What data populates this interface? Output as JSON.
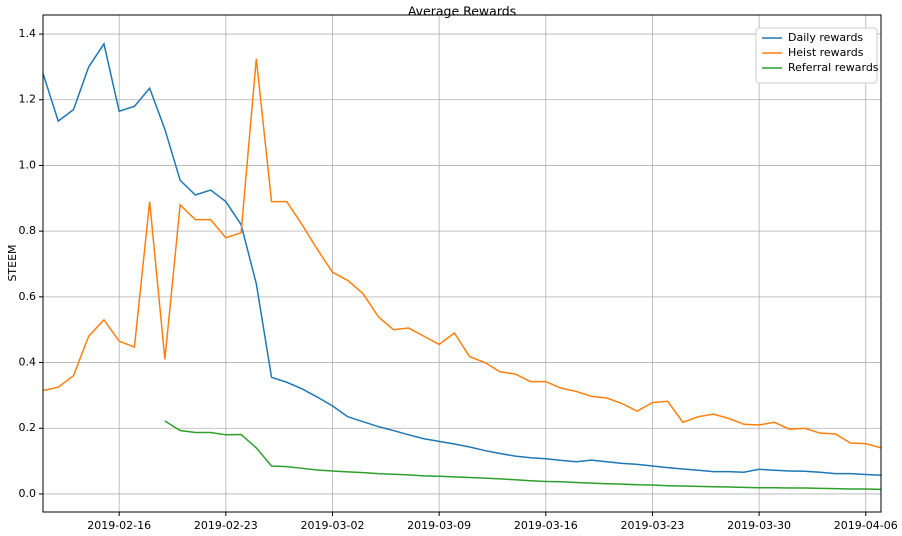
{
  "chart_data": {
    "type": "line",
    "title": "Average Rewards",
    "ylabel": "STEEM",
    "x": [
      "2019-02-11",
      "2019-02-12",
      "2019-02-13",
      "2019-02-14",
      "2019-02-15",
      "2019-02-16",
      "2019-02-17",
      "2019-02-18",
      "2019-02-19",
      "2019-02-20",
      "2019-02-21",
      "2019-02-22",
      "2019-02-23",
      "2019-02-24",
      "2019-02-25",
      "2019-02-26",
      "2019-02-27",
      "2019-02-28",
      "2019-03-01",
      "2019-03-02",
      "2019-03-03",
      "2019-03-04",
      "2019-03-05",
      "2019-03-06",
      "2019-03-07",
      "2019-03-08",
      "2019-03-09",
      "2019-03-10",
      "2019-03-11",
      "2019-03-12",
      "2019-03-13",
      "2019-03-14",
      "2019-03-15",
      "2019-03-16",
      "2019-03-17",
      "2019-03-18",
      "2019-03-19",
      "2019-03-20",
      "2019-03-21",
      "2019-03-22",
      "2019-03-23",
      "2019-03-24",
      "2019-03-25",
      "2019-03-26",
      "2019-03-27",
      "2019-03-28",
      "2019-03-29",
      "2019-03-30",
      "2019-03-31",
      "2019-04-01",
      "2019-04-02",
      "2019-04-03",
      "2019-04-04",
      "2019-04-05",
      "2019-04-06",
      "2019-04-07"
    ],
    "series": [
      {
        "name": "Daily rewards",
        "color": "#1f77b4",
        "values": [
          1.28,
          1.135,
          1.17,
          1.3,
          1.37,
          1.165,
          1.18,
          1.235,
          1.11,
          0.955,
          0.91,
          0.925,
          0.89,
          0.82,
          0.64,
          0.355,
          0.34,
          0.32,
          0.295,
          0.268,
          0.235,
          0.22,
          0.205,
          0.193,
          0.18,
          0.168,
          0.16,
          0.152,
          0.143,
          0.132,
          0.123,
          0.115,
          0.11,
          0.107,
          0.102,
          0.098,
          0.103,
          0.098,
          0.093,
          0.09,
          0.085,
          0.08,
          0.076,
          0.072,
          0.068,
          0.068,
          0.066,
          0.075,
          0.072,
          0.07,
          0.069,
          0.066,
          0.062,
          0.062,
          0.059,
          0.057
        ]
      },
      {
        "name": "Heist rewards",
        "color": "#ff7f0e",
        "values": [
          0.315,
          0.325,
          0.36,
          0.48,
          0.53,
          0.465,
          0.447,
          0.89,
          0.41,
          0.88,
          0.835,
          0.835,
          0.78,
          0.795,
          1.325,
          0.89,
          0.89,
          0.82,
          0.745,
          0.675,
          0.65,
          0.61,
          0.54,
          0.5,
          0.505,
          0.48,
          0.455,
          0.49,
          0.418,
          0.4,
          0.372,
          0.365,
          0.342,
          0.342,
          0.322,
          0.312,
          0.297,
          0.292,
          0.275,
          0.252,
          0.278,
          0.282,
          0.218,
          0.235,
          0.243,
          0.23,
          0.212,
          0.21,
          0.218,
          0.197,
          0.2,
          0.185,
          0.183,
          0.155,
          0.153,
          0.14
        ]
      },
      {
        "name": "Referral rewards",
        "color": "#2ca02c",
        "values": [
          null,
          null,
          null,
          null,
          null,
          null,
          null,
          null,
          0.222,
          0.193,
          0.187,
          0.187,
          0.18,
          0.181,
          0.14,
          0.085,
          0.083,
          0.078,
          0.073,
          0.07,
          0.067,
          0.065,
          0.062,
          0.06,
          0.058,
          0.055,
          0.054,
          0.052,
          0.05,
          0.048,
          0.046,
          0.043,
          0.04,
          0.038,
          0.037,
          0.035,
          0.033,
          0.031,
          0.03,
          0.028,
          0.027,
          0.025,
          0.024,
          0.023,
          0.022,
          0.021,
          0.02,
          0.019,
          0.019,
          0.018,
          0.018,
          0.017,
          0.016,
          0.015,
          0.015,
          0.014
        ]
      }
    ],
    "xlim": [
      "2019-02-11",
      "2019-04-07"
    ],
    "xticks": [
      "2019-02-16",
      "2019-02-23",
      "2019-03-02",
      "2019-03-09",
      "2019-03-16",
      "2019-03-23",
      "2019-03-30",
      "2019-04-06"
    ],
    "ylim": [
      -0.055,
      1.458
    ],
    "yticks": [
      {
        "value": 0,
        "label": "0.0"
      },
      0.2,
      0.4,
      0.6,
      0.8,
      {
        "value": 1,
        "label": "1.0"
      },
      1.2,
      1.4
    ],
    "grid": true,
    "legend": "upper right"
  }
}
